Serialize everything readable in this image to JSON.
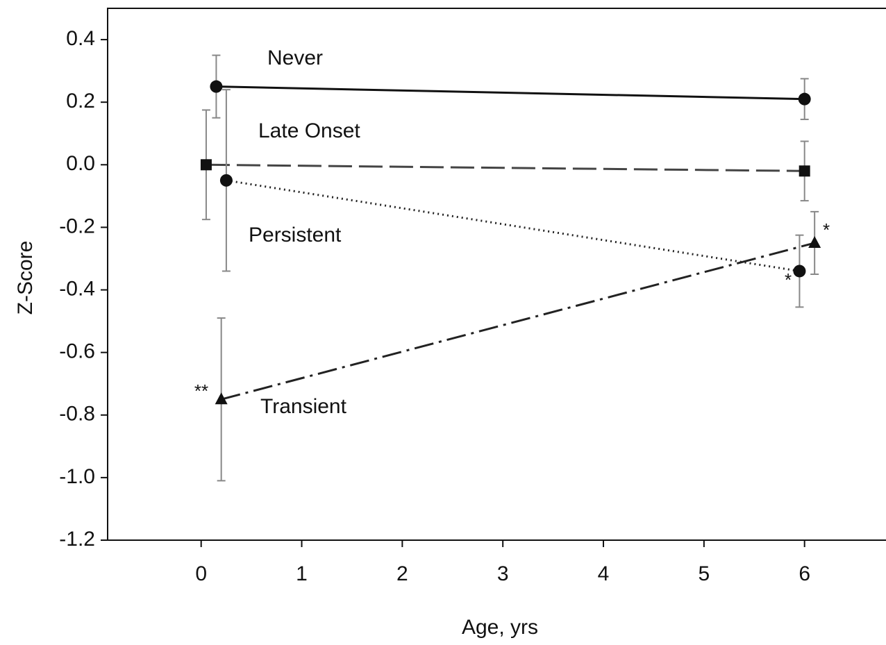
{
  "chart_data": {
    "type": "line",
    "xlabel": "Age, yrs",
    "ylabel": "Z-Score",
    "xlim": [
      -0.93,
      6.81
    ],
    "ylim": [
      -1.2,
      0.5
    ],
    "xticks": [
      0,
      1,
      2,
      3,
      4,
      5,
      6
    ],
    "yticks": [
      0.4,
      0.2,
      {
        "value": 0,
        "label": "0.0"
      },
      -0.2,
      -0.4,
      -0.6,
      -0.8,
      {
        "value": -1.0,
        "label": "-1.0"
      },
      -1.2
    ],
    "series": [
      {
        "name": "Never",
        "color": "#111111",
        "linestyle": "solid",
        "marker": "circle",
        "x": [
          0.15,
          6.0
        ],
        "values": [
          0.25,
          0.21
        ],
        "errors": [
          0.1,
          0.065
        ]
      },
      {
        "name": "Late Onset",
        "color": "#444444",
        "linestyle": "dashed",
        "marker": "square",
        "x": [
          0.05,
          6.0
        ],
        "values": [
          0.0,
          -0.02
        ],
        "errors": [
          0.175,
          0.095
        ]
      },
      {
        "name": "Persistent",
        "color": "#222222",
        "linestyle": "dotted",
        "marker": "circle",
        "x": [
          0.25,
          5.95
        ],
        "values": [
          -0.05,
          -0.34
        ],
        "errors": [
          0.29,
          0.115
        ]
      },
      {
        "name": "Transient",
        "color": "#222222",
        "linestyle": "dashdot",
        "marker": "triangle",
        "x": [
          0.2,
          6.1
        ],
        "values": [
          -0.75,
          -0.25
        ],
        "errors": [
          0.26,
          0.1
        ]
      }
    ],
    "annotations": [
      "**",
      "*",
      "*"
    ]
  }
}
